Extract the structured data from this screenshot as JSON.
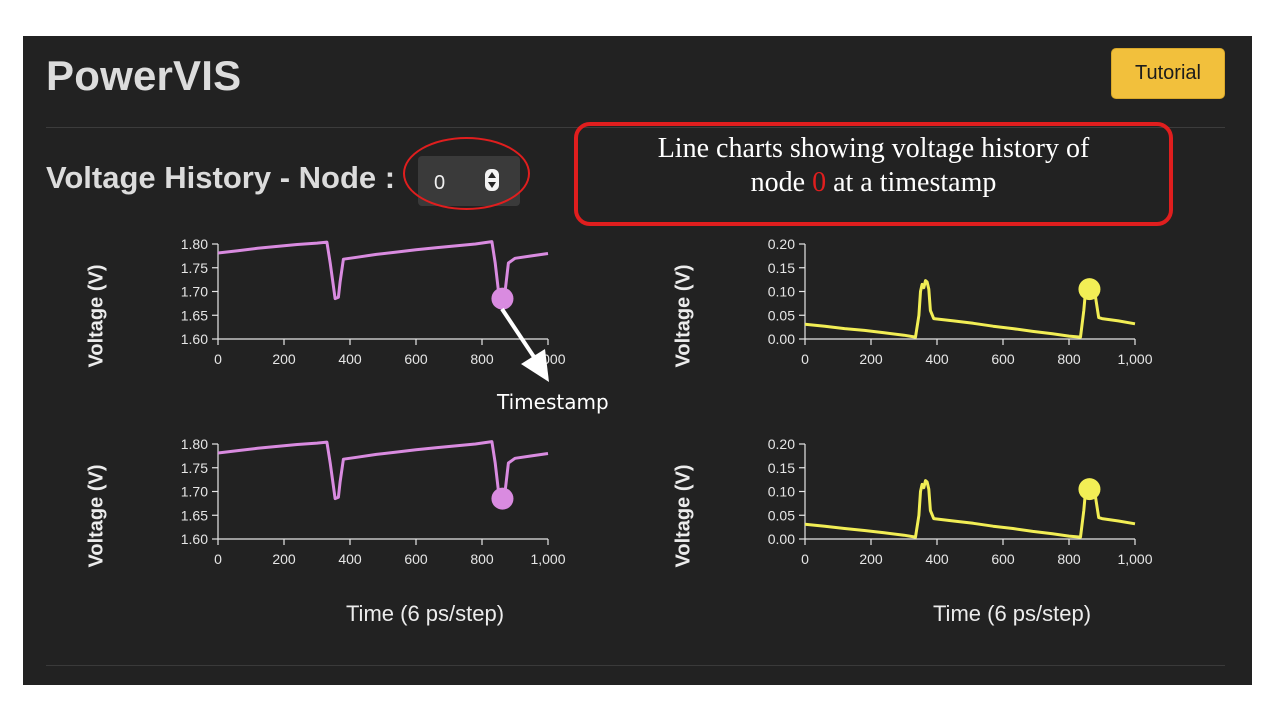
{
  "header": {
    "app_title": "PowerVIS",
    "tutorial_label": "Tutorial"
  },
  "section": {
    "title": "Voltage History - Node :",
    "node_input_value": "0"
  },
  "annotations": {
    "callout_line1": "Line charts showing voltage history of",
    "callout_line2_before": "node",
    "callout_line2_number": "0",
    "callout_line2_after": "at a timestamp",
    "timestamp_label": "Timestamp",
    "accent_color": "#e01e1e"
  },
  "chart_data": [
    {
      "type": "line",
      "ylabel": "Voltage (V)",
      "xlabel": "",
      "color": "#d98be0",
      "xlim": [
        0,
        1000
      ],
      "ylim": [
        1.6,
        1.8
      ],
      "xticks": [
        0,
        200,
        400,
        600,
        800,
        1000
      ],
      "xtick_labels": [
        "0",
        "200",
        "400",
        "600",
        "800",
        "1,000"
      ],
      "yticks": [
        1.6,
        1.65,
        1.7,
        1.75,
        1.8
      ],
      "ytick_labels": [
        "1.60",
        "1.65",
        "1.70",
        "1.75",
        "1.80"
      ],
      "x": [
        0,
        60,
        120,
        180,
        240,
        300,
        330,
        340,
        350,
        355,
        365,
        370,
        380,
        420,
        480,
        540,
        600,
        660,
        720,
        780,
        830,
        840,
        850,
        860,
        870,
        880,
        900,
        950,
        1000
      ],
      "y": [
        1.781,
        1.786,
        1.791,
        1.795,
        1.799,
        1.802,
        1.804,
        1.76,
        1.71,
        1.685,
        1.688,
        1.72,
        1.768,
        1.772,
        1.778,
        1.783,
        1.788,
        1.792,
        1.796,
        1.8,
        1.805,
        1.76,
        1.7,
        1.68,
        1.7,
        1.76,
        1.77,
        1.775,
        1.78
      ],
      "marker": {
        "x": 862,
        "y": 1.685
      }
    },
    {
      "type": "line",
      "ylabel": "Voltage (V)",
      "xlabel": "",
      "color": "#f2ee55",
      "xlim": [
        0,
        1000
      ],
      "ylim": [
        0.0,
        0.2
      ],
      "xticks": [
        0,
        200,
        400,
        600,
        800,
        1000
      ],
      "xtick_labels": [
        "0",
        "200",
        "400",
        "600",
        "800",
        "1,000"
      ],
      "yticks": [
        0.0,
        0.05,
        0.1,
        0.15,
        0.2
      ],
      "ytick_labels": [
        "0.00",
        "0.05",
        "0.10",
        "0.15",
        "0.20"
      ],
      "x": [
        0,
        60,
        120,
        180,
        240,
        300,
        335,
        345,
        350,
        355,
        360,
        365,
        370,
        375,
        380,
        390,
        450,
        510,
        570,
        630,
        690,
        750,
        800,
        835,
        845,
        850,
        860,
        870,
        880,
        890,
        900,
        950,
        1000
      ],
      "y": [
        0.031,
        0.027,
        0.022,
        0.018,
        0.013,
        0.008,
        0.004,
        0.05,
        0.1,
        0.115,
        0.108,
        0.123,
        0.12,
        0.105,
        0.06,
        0.043,
        0.038,
        0.033,
        0.027,
        0.022,
        0.016,
        0.011,
        0.006,
        0.004,
        0.06,
        0.1,
        0.105,
        0.11,
        0.09,
        0.045,
        0.043,
        0.038,
        0.032
      ],
      "marker": {
        "x": 862,
        "y": 0.105
      }
    },
    {
      "type": "line",
      "ylabel": "Voltage (V)",
      "xlabel": "Time (6 ps/step)",
      "color": "#d98be0",
      "xlim": [
        0,
        1000
      ],
      "ylim": [
        1.6,
        1.8
      ],
      "xticks": [
        0,
        200,
        400,
        600,
        800,
        1000
      ],
      "xtick_labels": [
        "0",
        "200",
        "400",
        "600",
        "800",
        "1,000"
      ],
      "yticks": [
        1.6,
        1.65,
        1.7,
        1.75,
        1.8
      ],
      "ytick_labels": [
        "1.60",
        "1.65",
        "1.70",
        "1.75",
        "1.80"
      ],
      "x": [
        0,
        60,
        120,
        180,
        240,
        300,
        330,
        340,
        350,
        355,
        365,
        370,
        380,
        420,
        480,
        540,
        600,
        660,
        720,
        780,
        830,
        840,
        850,
        860,
        870,
        880,
        900,
        950,
        1000
      ],
      "y": [
        1.781,
        1.786,
        1.791,
        1.795,
        1.799,
        1.802,
        1.804,
        1.76,
        1.71,
        1.685,
        1.688,
        1.72,
        1.768,
        1.772,
        1.778,
        1.783,
        1.788,
        1.792,
        1.796,
        1.8,
        1.805,
        1.76,
        1.7,
        1.68,
        1.7,
        1.76,
        1.77,
        1.775,
        1.78
      ],
      "marker": {
        "x": 862,
        "y": 1.685
      }
    },
    {
      "type": "line",
      "ylabel": "Voltage (V)",
      "xlabel": "Time (6 ps/step)",
      "color": "#f2ee55",
      "xlim": [
        0,
        1000
      ],
      "ylim": [
        0.0,
        0.2
      ],
      "xticks": [
        0,
        200,
        400,
        600,
        800,
        1000
      ],
      "xtick_labels": [
        "0",
        "200",
        "400",
        "600",
        "800",
        "1,000"
      ],
      "yticks": [
        0.0,
        0.05,
        0.1,
        0.15,
        0.2
      ],
      "ytick_labels": [
        "0.00",
        "0.05",
        "0.10",
        "0.15",
        "0.20"
      ],
      "x": [
        0,
        60,
        120,
        180,
        240,
        300,
        335,
        345,
        350,
        355,
        360,
        365,
        370,
        375,
        380,
        390,
        450,
        510,
        570,
        630,
        690,
        750,
        800,
        835,
        845,
        850,
        860,
        870,
        880,
        890,
        900,
        950,
        1000
      ],
      "y": [
        0.031,
        0.027,
        0.022,
        0.018,
        0.013,
        0.008,
        0.004,
        0.05,
        0.1,
        0.115,
        0.108,
        0.123,
        0.12,
        0.105,
        0.06,
        0.043,
        0.038,
        0.033,
        0.027,
        0.022,
        0.016,
        0.011,
        0.006,
        0.004,
        0.06,
        0.1,
        0.105,
        0.11,
        0.09,
        0.045,
        0.043,
        0.038,
        0.032
      ],
      "marker": {
        "x": 862,
        "y": 0.105
      }
    }
  ]
}
